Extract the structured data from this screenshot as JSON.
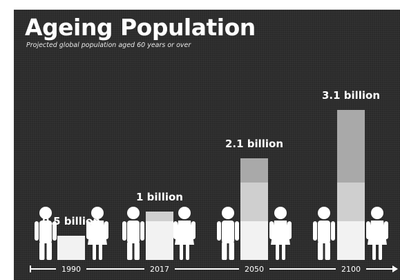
{
  "chart_data": {
    "type": "bar",
    "title": "Ageing Population",
    "subtitle": "Projected global population aged 60 years or over",
    "categories": [
      "1990",
      "2017",
      "2050",
      "2100"
    ],
    "values": [
      0.5,
      1,
      2.1,
      3.1
    ],
    "value_labels": [
      "0.5 billion",
      "1 billion",
      "2.1 billion",
      "3.1 billion"
    ],
    "ylim": [
      0,
      3.1
    ],
    "grid": false,
    "legend": "none"
  },
  "colors": {
    "background": "#2a2a2a",
    "text": "#ffffff",
    "bar_base": "#f2f2f2",
    "bar_mid": "#cfcfcf",
    "bar_top": "#a9a9a9",
    "figure": "#ffffff"
  }
}
